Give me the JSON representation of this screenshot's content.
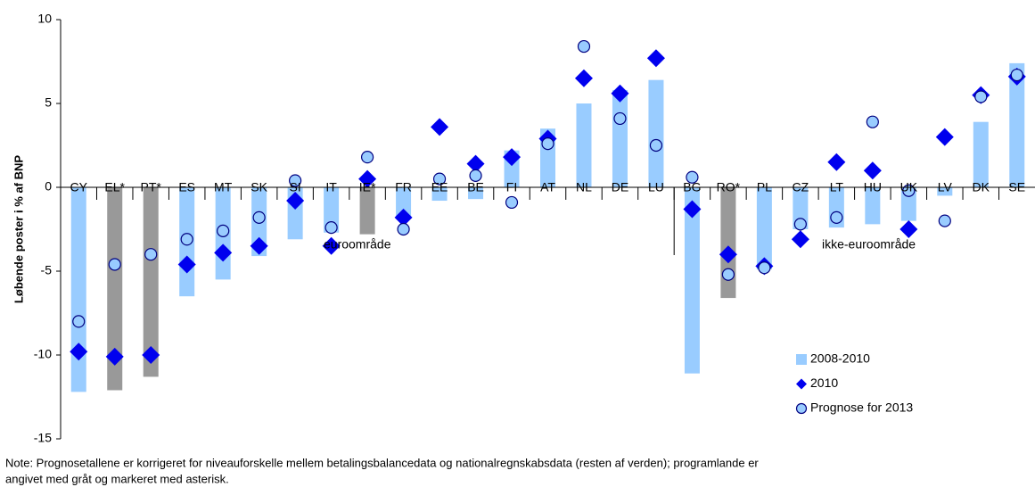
{
  "chart_data": {
    "type": "bar",
    "ylabel": "Løbende poster i % af BNP",
    "categories": [
      "CY",
      "EL*",
      "PT*",
      "ES",
      "MT",
      "SK",
      "SI",
      "IT",
      "IE*",
      "FR",
      "EE",
      "BE",
      "FI",
      "AT",
      "NL",
      "DE",
      "LU",
      "BG",
      "RO*",
      "PL",
      "CZ",
      "LT",
      "HU",
      "UK",
      "LV",
      "DK",
      "SE"
    ],
    "series": [
      {
        "name": "2008-2010",
        "kind": "bar",
        "color": "#99ccff",
        "colors": [
          "#99ccff",
          "#999999",
          "#999999",
          "#99ccff",
          "#99ccff",
          "#99ccff",
          "#99ccff",
          "#99ccff",
          "#999999",
          "#99ccff",
          "#99ccff",
          "#99ccff",
          "#99ccff",
          "#99ccff",
          "#99ccff",
          "#99ccff",
          "#99ccff",
          "#99ccff",
          "#999999",
          "#99ccff",
          "#99ccff",
          "#99ccff",
          "#99ccff",
          "#99ccff",
          "#99ccff",
          "#99ccff",
          "#99ccff"
        ],
        "values": [
          -12.2,
          -12.1,
          -11.3,
          -6.5,
          -5.5,
          -4.1,
          -3.1,
          -2.7,
          -2.8,
          -1.7,
          -0.8,
          -0.7,
          2.2,
          3.5,
          5.0,
          5.8,
          6.4,
          -11.1,
          -6.6,
          -4.9,
          -2.5,
          -2.4,
          -2.2,
          -2.0,
          -0.5,
          3.9,
          7.4
        ]
      },
      {
        "name": "2010",
        "kind": "diamond",
        "color": "#0000ee",
        "values": [
          -9.8,
          -10.1,
          -10.0,
          -4.6,
          -3.9,
          -3.5,
          -0.8,
          -3.5,
          0.5,
          -1.8,
          3.6,
          1.4,
          1.8,
          2.9,
          6.5,
          5.6,
          7.7,
          -1.3,
          -4.0,
          -4.7,
          -3.1,
          1.5,
          1.0,
          -2.5,
          3.0,
          5.5,
          6.6
        ]
      },
      {
        "name": "Prognose for 2013",
        "kind": "circle",
        "color": "#99ccff",
        "values": [
          -8.0,
          -4.6,
          -4.0,
          -3.1,
          -2.6,
          -1.8,
          0.4,
          -2.4,
          1.8,
          -2.5,
          0.5,
          0.7,
          -0.9,
          2.6,
          8.4,
          4.1,
          2.5,
          0.6,
          -5.2,
          -4.8,
          -2.2,
          -1.8,
          3.9,
          -0.2,
          -2.0,
          5.4,
          6.7
        ]
      }
    ],
    "annotations": [
      "euroområde",
      "ikke-euroområde"
    ],
    "ylim": [
      -15,
      10
    ],
    "yticks": [
      -15,
      -10,
      -5,
      0,
      5,
      10
    ],
    "note": [
      "Note: Prognosetallene er korrigeret for niveauforskelle mellem betalingsbalancedata og nationalregnskabsdata (resten af verden); programlande er",
      "angivet med gråt og markeret med asterisk."
    ]
  }
}
